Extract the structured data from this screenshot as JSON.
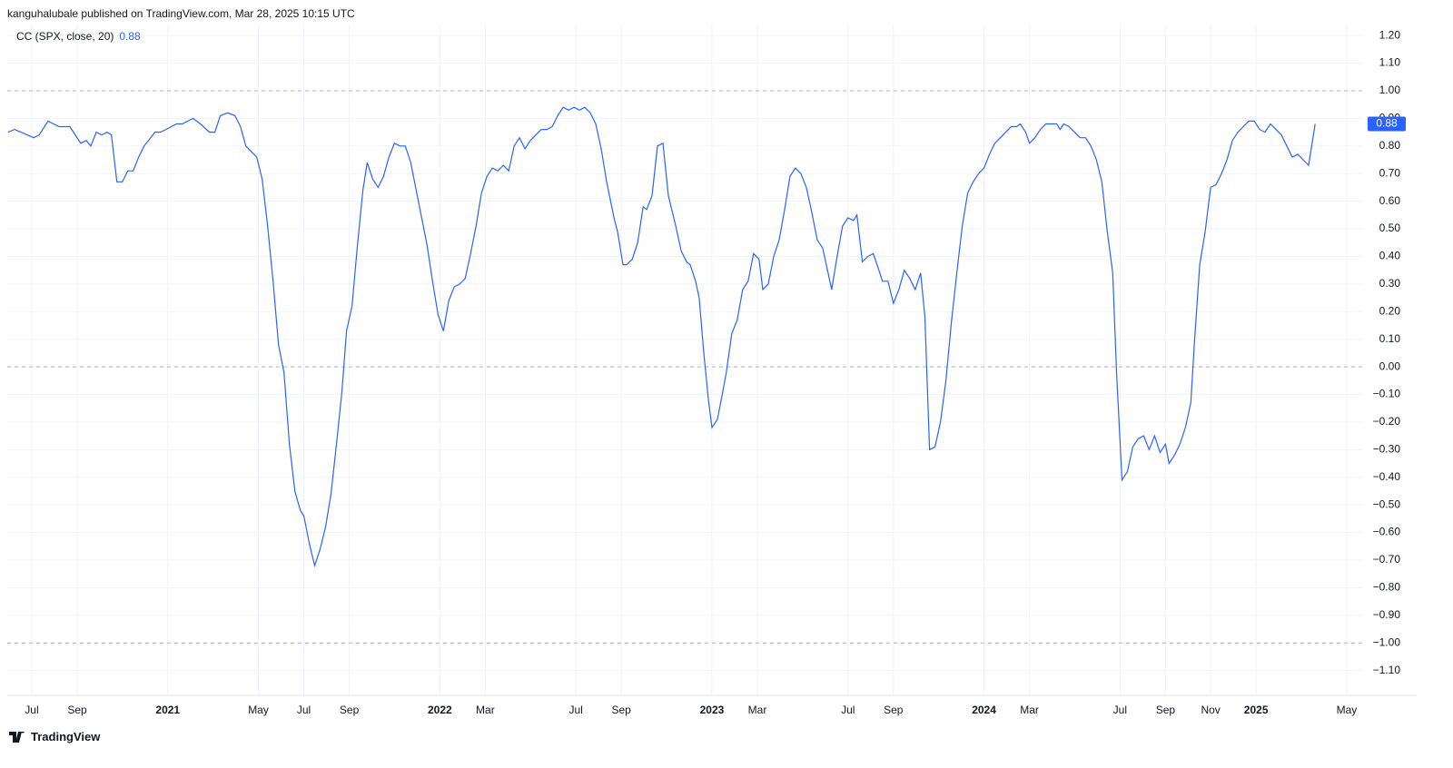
{
  "header": {
    "text": "kanguhalubale published on TradingView.com, Mar 28, 2025 10:15 UTC"
  },
  "footer": {
    "brand": "TradingView"
  },
  "chart_data": {
    "type": "line",
    "xlim": [
      2020.41,
      2025.39
    ],
    "ylim": [
      -1.19,
      1.24
    ],
    "grid": true,
    "reference_lines": [
      1,
      0,
      -1
    ],
    "xticks": [
      {
        "value": 2020.5,
        "label": "Jul"
      },
      {
        "value": 2020.667,
        "label": "Sep"
      },
      2021,
      {
        "value": 2021.333,
        "label": "May"
      },
      {
        "value": 2021.5,
        "label": "Jul"
      },
      {
        "value": 2021.667,
        "label": "Sep"
      },
      2022,
      {
        "value": 2022.167,
        "label": "Mar"
      },
      {
        "value": 2022.5,
        "label": "Jul"
      },
      {
        "value": 2022.667,
        "label": "Sep"
      },
      2023,
      {
        "value": 2023.167,
        "label": "Mar"
      },
      {
        "value": 2023.5,
        "label": "Jul"
      },
      {
        "value": 2023.667,
        "label": "Sep"
      },
      2024,
      {
        "value": 2024.167,
        "label": "Mar"
      },
      {
        "value": 2024.5,
        "label": "Jul"
      },
      {
        "value": 2024.667,
        "label": "Sep"
      },
      {
        "value": 2024.833,
        "label": "Nov"
      },
      2025,
      {
        "value": 2025.333,
        "label": "May"
      }
    ],
    "yticks": [
      {
        "value": 1.2,
        "label": "1.20"
      },
      {
        "value": 1.1,
        "label": "1.10"
      },
      {
        "value": 1.0,
        "label": "1.00"
      },
      {
        "value": 0.9,
        "label": "0.90"
      },
      {
        "value": 0.8,
        "label": "0.80"
      },
      {
        "value": 0.7,
        "label": "0.70"
      },
      {
        "value": 0.6,
        "label": "0.60"
      },
      {
        "value": 0.5,
        "label": "0.50"
      },
      {
        "value": 0.4,
        "label": "0.40"
      },
      {
        "value": 0.3,
        "label": "0.30"
      },
      {
        "value": 0.2,
        "label": "0.20"
      },
      {
        "value": 0.1,
        "label": "0.10"
      },
      {
        "value": 0,
        "label": "0.00"
      },
      {
        "value": -0.1,
        "label": "−0.10"
      },
      {
        "value": -0.2,
        "label": "−0.20"
      },
      {
        "value": -0.3,
        "label": "−0.30"
      },
      {
        "value": -0.4,
        "label": "−0.40"
      },
      {
        "value": -0.5,
        "label": "−0.50"
      },
      {
        "value": -0.6,
        "label": "−0.60"
      },
      {
        "value": -0.7,
        "label": "−0.70"
      },
      {
        "value": -0.8,
        "label": "−0.80"
      },
      {
        "value": -0.9,
        "label": "−0.90"
      },
      {
        "value": -1.0,
        "label": "−1.00"
      },
      {
        "value": -1.1,
        "label": "−1.10"
      }
    ],
    "series": [
      {
        "name": "CC (SPX, close, 20)",
        "color": "#2962ff",
        "x": [
          2020.413,
          2020.437,
          2020.46,
          2020.507,
          2020.527,
          2020.56,
          2020.6,
          2020.64,
          2020.68,
          2020.7,
          2020.717,
          2020.737,
          2020.757,
          2020.777,
          2020.793,
          2020.813,
          2020.833,
          2020.853,
          2020.873,
          2020.893,
          2020.913,
          2020.953,
          2020.973,
          2020.993,
          2021.033,
          2021.053,
          2021.093,
          2021.12,
          2021.153,
          2021.173,
          2021.193,
          2021.22,
          2021.247,
          2021.267,
          2021.287,
          2021.307,
          2021.327,
          2021.347,
          2021.367,
          2021.387,
          2021.407,
          2021.427,
          2021.447,
          2021.467,
          2021.487,
          2021.5,
          2021.52,
          2021.54,
          2021.56,
          2021.58,
          2021.6,
          2021.62,
          2021.64,
          2021.657,
          2021.677,
          2021.697,
          2021.717,
          2021.733,
          2021.753,
          2021.773,
          2021.793,
          2021.813,
          2021.833,
          2021.853,
          2021.873,
          2021.893,
          2021.913,
          2021.933,
          2021.953,
          2021.973,
          2021.993,
          2022.013,
          2022.033,
          2022.053,
          2022.073,
          2022.093,
          2022.113,
          2022.133,
          2022.153,
          2022.173,
          2022.193,
          2022.213,
          2022.233,
          2022.253,
          2022.273,
          2022.293,
          2022.313,
          2022.333,
          2022.353,
          2022.373,
          2022.393,
          2022.413,
          2022.433,
          2022.453,
          2022.473,
          2022.493,
          2022.513,
          2022.533,
          2022.553,
          2022.573,
          2022.593,
          2022.613,
          2022.64,
          2022.653,
          2022.673,
          2022.687,
          2022.707,
          2022.727,
          2022.747,
          2022.76,
          2022.78,
          2022.8,
          2022.82,
          2022.84,
          2022.867,
          2022.887,
          2022.907,
          2022.92,
          2022.94,
          2022.953,
          2022.97,
          2022.987,
          2023.0,
          2023.02,
          2023.04,
          2023.053,
          2023.073,
          2023.093,
          2023.113,
          2023.133,
          2023.153,
          2023.173,
          2023.187,
          2023.207,
          2023.227,
          2023.247,
          2023.267,
          2023.287,
          2023.307,
          2023.327,
          2023.347,
          2023.367,
          2023.387,
          2023.407,
          2023.427,
          2023.44,
          2023.46,
          2023.48,
          2023.5,
          2023.52,
          2023.533,
          2023.553,
          2023.573,
          2023.593,
          2023.607,
          2023.627,
          2023.647,
          2023.667,
          2023.687,
          2023.707,
          2023.727,
          2023.747,
          2023.767,
          2023.783,
          2023.8,
          2023.82,
          2023.84,
          2023.86,
          2023.88,
          2023.9,
          2023.92,
          2023.94,
          2023.96,
          2023.98,
          2024.0,
          2024.02,
          2024.04,
          2024.06,
          2024.08,
          2024.1,
          2024.12,
          2024.133,
          2024.153,
          2024.167,
          2024.187,
          2024.207,
          2024.227,
          2024.247,
          2024.267,
          2024.28,
          2024.293,
          2024.313,
          2024.333,
          2024.353,
          2024.373,
          2024.393,
          2024.413,
          2024.433,
          2024.453,
          2024.473,
          2024.487,
          2024.507,
          2024.527,
          2024.547,
          2024.567,
          2024.587,
          2024.607,
          2024.627,
          2024.647,
          2024.667,
          2024.68,
          2024.7,
          2024.72,
          2024.74,
          2024.76,
          2024.773,
          2024.793,
          2024.813,
          2024.833,
          2024.853,
          2024.873,
          2024.893,
          2024.913,
          2024.933,
          2024.953,
          2024.973,
          2024.993,
          2025.013,
          2025.033,
          2025.053,
          2025.073,
          2025.093,
          2025.113,
          2025.133,
          2025.153,
          2025.173,
          2025.193,
          2025.217
        ],
        "values": [
          0.85,
          0.86,
          0.85,
          0.83,
          0.84,
          0.89,
          0.87,
          0.87,
          0.81,
          0.82,
          0.8,
          0.85,
          0.84,
          0.85,
          0.84,
          0.67,
          0.67,
          0.71,
          0.71,
          0.76,
          0.8,
          0.85,
          0.85,
          0.86,
          0.88,
          0.88,
          0.9,
          0.88,
          0.85,
          0.85,
          0.91,
          0.92,
          0.91,
          0.87,
          0.8,
          0.78,
          0.76,
          0.68,
          0.51,
          0.31,
          0.08,
          -0.02,
          -0.28,
          -0.45,
          -0.52,
          -0.54,
          -0.64,
          -0.72,
          -0.66,
          -0.58,
          -0.46,
          -0.28,
          -0.09,
          0.13,
          0.22,
          0.44,
          0.64,
          0.74,
          0.68,
          0.65,
          0.69,
          0.76,
          0.81,
          0.8,
          0.8,
          0.74,
          0.64,
          0.54,
          0.44,
          0.31,
          0.19,
          0.13,
          0.24,
          0.29,
          0.3,
          0.32,
          0.41,
          0.51,
          0.63,
          0.69,
          0.72,
          0.71,
          0.73,
          0.71,
          0.8,
          0.83,
          0.79,
          0.82,
          0.84,
          0.86,
          0.86,
          0.87,
          0.91,
          0.94,
          0.93,
          0.94,
          0.93,
          0.94,
          0.92,
          0.88,
          0.79,
          0.67,
          0.54,
          0.49,
          0.37,
          0.37,
          0.39,
          0.45,
          0.58,
          0.57,
          0.62,
          0.8,
          0.81,
          0.62,
          0.51,
          0.42,
          0.38,
          0.37,
          0.31,
          0.25,
          0.05,
          -0.12,
          -0.22,
          -0.19,
          -0.09,
          -0.02,
          0.12,
          0.17,
          0.28,
          0.31,
          0.41,
          0.39,
          0.28,
          0.3,
          0.4,
          0.46,
          0.57,
          0.69,
          0.72,
          0.7,
          0.65,
          0.56,
          0.46,
          0.43,
          0.34,
          0.28,
          0.4,
          0.51,
          0.54,
          0.53,
          0.55,
          0.38,
          0.4,
          0.41,
          0.37,
          0.31,
          0.31,
          0.23,
          0.28,
          0.35,
          0.32,
          0.28,
          0.34,
          0.18,
          -0.3,
          -0.29,
          -0.2,
          -0.05,
          0.16,
          0.34,
          0.51,
          0.63,
          0.67,
          0.7,
          0.72,
          0.77,
          0.81,
          0.83,
          0.85,
          0.87,
          0.87,
          0.88,
          0.85,
          0.81,
          0.83,
          0.86,
          0.88,
          0.88,
          0.88,
          0.86,
          0.88,
          0.87,
          0.85,
          0.83,
          0.83,
          0.8,
          0.75,
          0.67,
          0.49,
          0.34,
          -0.02,
          -0.41,
          -0.38,
          -0.29,
          -0.26,
          -0.25,
          -0.3,
          -0.25,
          -0.31,
          -0.28,
          -0.35,
          -0.32,
          -0.28,
          -0.22,
          -0.13,
          0.08,
          0.37,
          0.49,
          0.65,
          0.66,
          0.7,
          0.75,
          0.82,
          0.85,
          0.87,
          0.89,
          0.89,
          0.86,
          0.85,
          0.88,
          0.86,
          0.84,
          0.8,
          0.76,
          0.77,
          0.75,
          0.73,
          0.88
        ]
      }
    ]
  }
}
